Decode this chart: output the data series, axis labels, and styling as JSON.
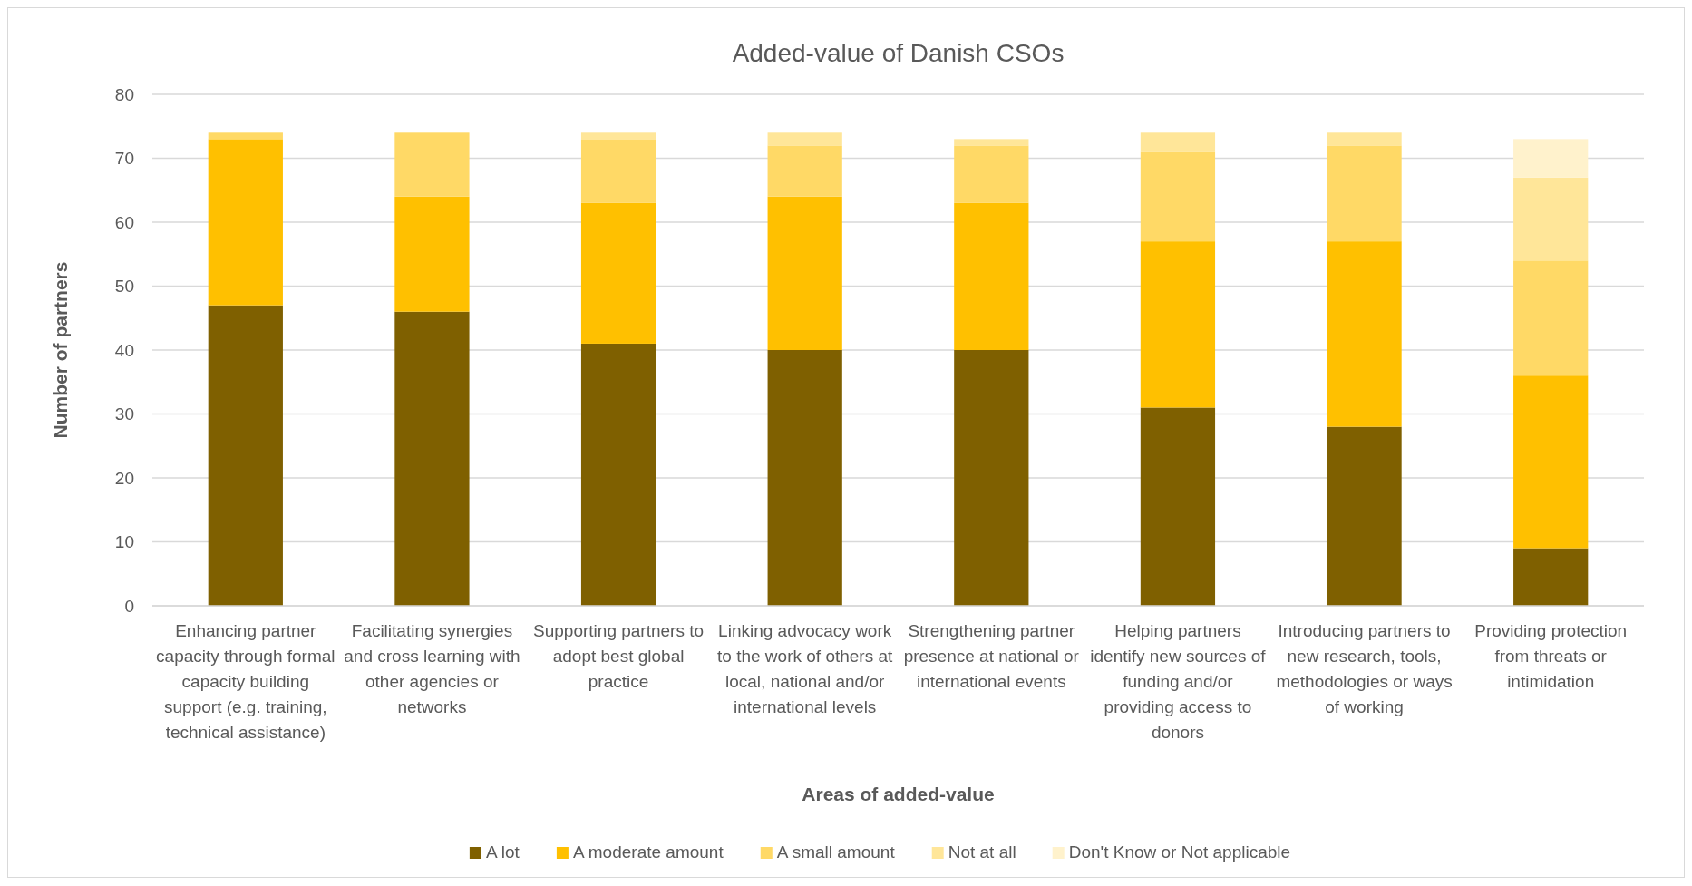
{
  "chart_data": {
    "type": "bar",
    "title": "Added-value of Danish CSOs",
    "xlabel": "Areas of added-value",
    "ylabel": "Number of partners",
    "categories": [
      "Enhancing partner capacity through formal capacity building support (e.g. training, technical assistance)",
      "Facilitating synergies and cross learning with other agencies or networks",
      "Supporting partners to adopt best global practice",
      "Linking advocacy work to the work of others at local, national and/or international levels",
      "Strengthening partner presence at national or international events",
      "Helping partners identify new sources of funding and/or providing access to donors",
      "Introducing partners to new research, tools, methodologies or ways of working",
      "Providing protection from threats or intimidation"
    ],
    "stacked": true,
    "series": [
      {
        "name": "A lot",
        "color": "#7f6000",
        "values": [
          47,
          46,
          41,
          40,
          40,
          31,
          28,
          9
        ]
      },
      {
        "name": "A moderate amount",
        "color": "#ffc000",
        "values": [
          26,
          18,
          22,
          24,
          23,
          26,
          29,
          27
        ]
      },
      {
        "name": "A small amount",
        "color": "#ffd966",
        "values": [
          1,
          10,
          10,
          8,
          9,
          14,
          15,
          18
        ]
      },
      {
        "name": "Not at all",
        "color": "#ffe699",
        "values": [
          0,
          0,
          1,
          2,
          1,
          3,
          2,
          13
        ]
      },
      {
        "name": "Don't Know or Not applicable",
        "color": "#fff2cc",
        "values": [
          0,
          0,
          0,
          0,
          0,
          0,
          0,
          6
        ]
      }
    ],
    "ylim": [
      0,
      80
    ],
    "yticks": [
      0,
      10,
      20,
      30,
      40,
      50,
      60,
      70,
      80
    ],
    "grid": "y",
    "legend": "bottom"
  }
}
